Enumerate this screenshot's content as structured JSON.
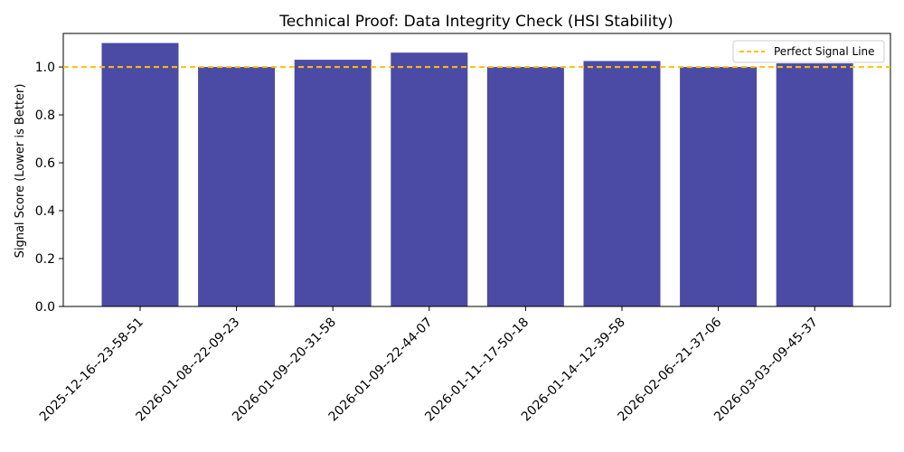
{
  "chart_data": {
    "type": "bar",
    "title": "Technical Proof: Data Integrity Check (HSI Stability)",
    "xlabel": "",
    "ylabel": "Signal Score (Lower is Better)",
    "categories": [
      "2025-12-16--23-58-51",
      "2026-01-08--22-09-23",
      "2026-01-09--20-31-58",
      "2026-01-09--22-44-07",
      "2026-01-11--17-50-18",
      "2026-01-14--12-39-58",
      "2026-02-06--21-37-06",
      "2026-03-03--09-45-37"
    ],
    "values": [
      1.1,
      1.0,
      1.03,
      1.06,
      1.0,
      1.025,
      1.0,
      1.015
    ],
    "ylim": [
      0,
      1.14
    ],
    "yticks": [
      0.0,
      0.2,
      0.4,
      0.6,
      0.8,
      1.0
    ],
    "ytick_labels": [
      "0.0",
      "0.2",
      "0.4",
      "0.6",
      "0.8",
      "1.0"
    ],
    "bar_color": "#4b4ba6",
    "reference_line": {
      "label": "Perfect Signal Line",
      "value": 1.0,
      "color": "#ffc107",
      "style": "dashed"
    },
    "legend": {
      "position": "top-right",
      "entries": [
        "Perfect Signal Line"
      ]
    },
    "grid": false
  }
}
